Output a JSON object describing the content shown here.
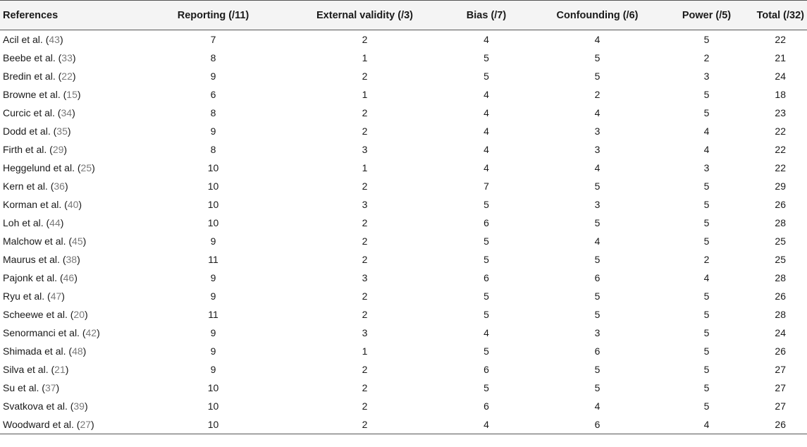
{
  "headers": [
    "References",
    "Reporting (/11)",
    "External validity (/3)",
    "Bias (/7)",
    "Confounding (/6)",
    "Power (/5)",
    "Total (/32)"
  ],
  "rows": [
    {
      "author": "Acil et al.",
      "ref": "43",
      "values": [
        "7",
        "2",
        "4",
        "4",
        "5",
        "22"
      ]
    },
    {
      "author": "Beebe et al.",
      "ref": "33",
      "values": [
        "8",
        "1",
        "5",
        "5",
        "2",
        "21"
      ]
    },
    {
      "author": "Bredin et al.",
      "ref": "22",
      "values": [
        "9",
        "2",
        "5",
        "5",
        "3",
        "24"
      ]
    },
    {
      "author": "Browne et al.",
      "ref": "15",
      "values": [
        "6",
        "1",
        "4",
        "2",
        "5",
        "18"
      ]
    },
    {
      "author": "Curcic et al.",
      "ref": "34",
      "values": [
        "8",
        "2",
        "4",
        "4",
        "5",
        "23"
      ]
    },
    {
      "author": "Dodd et al.",
      "ref": "35",
      "values": [
        "9",
        "2",
        "4",
        "3",
        "4",
        "22"
      ]
    },
    {
      "author": "Firth et al.",
      "ref": "29",
      "values": [
        "8",
        "3",
        "4",
        "3",
        "4",
        "22"
      ]
    },
    {
      "author": "Heggelund et al.",
      "ref": "25",
      "values": [
        "10",
        "1",
        "4",
        "4",
        "3",
        "22"
      ]
    },
    {
      "author": "Kern et al.",
      "ref": "36",
      "values": [
        "10",
        "2",
        "7",
        "5",
        "5",
        "29"
      ]
    },
    {
      "author": "Korman et al.",
      "ref": "40",
      "values": [
        "10",
        "3",
        "5",
        "3",
        "5",
        "26"
      ]
    },
    {
      "author": "Loh et al.",
      "ref": "44",
      "values": [
        "10",
        "2",
        "6",
        "5",
        "5",
        "28"
      ]
    },
    {
      "author": "Malchow et al.",
      "ref": "45",
      "values": [
        "9",
        "2",
        "5",
        "4",
        "5",
        "25"
      ]
    },
    {
      "author": "Maurus et al.",
      "ref": "38",
      "values": [
        "11",
        "2",
        "5",
        "5",
        "2",
        "25"
      ]
    },
    {
      "author": "Pajonk et al.",
      "ref": "46",
      "values": [
        "9",
        "3",
        "6",
        "6",
        "4",
        "28"
      ]
    },
    {
      "author": "Ryu et al.",
      "ref": "47",
      "values": [
        "9",
        "2",
        "5",
        "5",
        "5",
        "26"
      ]
    },
    {
      "author": "Scheewe et al.",
      "ref": "20",
      "values": [
        "11",
        "2",
        "5",
        "5",
        "5",
        "28"
      ]
    },
    {
      "author": "Senormanci et al.",
      "ref": "42",
      "values": [
        "9",
        "3",
        "4",
        "3",
        "5",
        "24"
      ]
    },
    {
      "author": "Shimada et al.",
      "ref": "48",
      "values": [
        "9",
        "1",
        "5",
        "6",
        "5",
        "26"
      ]
    },
    {
      "author": "Silva et al.",
      "ref": "21",
      "values": [
        "9",
        "2",
        "6",
        "5",
        "5",
        "27"
      ]
    },
    {
      "author": "Su et al.",
      "ref": "37",
      "values": [
        "10",
        "2",
        "5",
        "5",
        "5",
        "27"
      ]
    },
    {
      "author": "Svatkova et al.",
      "ref": "39",
      "values": [
        "10",
        "2",
        "6",
        "4",
        "5",
        "27"
      ]
    },
    {
      "author": "Woodward et al.",
      "ref": "27",
      "values": [
        "10",
        "2",
        "4",
        "6",
        "4",
        "26"
      ]
    }
  ]
}
